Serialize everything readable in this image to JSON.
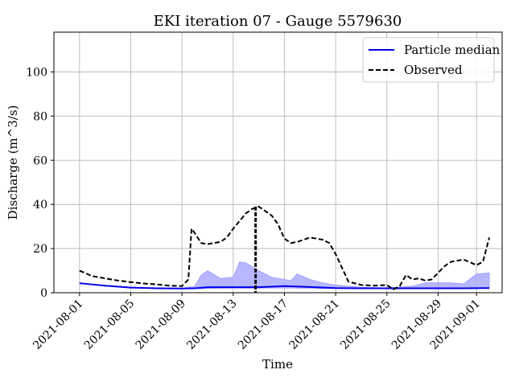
{
  "chart_data": {
    "type": "line",
    "title": "EKI iteration 07 - Gauge 5579630",
    "xlabel": "Time",
    "ylabel": "Discharge (m^3/s)",
    "xlim": [
      "2021-07-30",
      "2021-09-03"
    ],
    "ylim": [
      0,
      118
    ],
    "grid": true,
    "legend_position": "top-right",
    "x_ticks": [
      "2021-08-01",
      "2021-08-05",
      "2021-08-09",
      "2021-08-13",
      "2021-08-17",
      "2021-08-21",
      "2021-08-25",
      "2021-08-29",
      "2021-09-01"
    ],
    "y_ticks": [
      0,
      20,
      40,
      60,
      80,
      100
    ],
    "colors": {
      "median": "#0000ee",
      "band": "#aaaaff",
      "band_edge": "#8888ff",
      "observed": "#000000",
      "grid": "#b0b0b0"
    },
    "series": [
      {
        "name": "Particle median",
        "style": "solid",
        "x": [
          "2021-08-01",
          "2021-08-03",
          "2021-08-05",
          "2021-08-07",
          "2021-08-09",
          "2021-08-10",
          "2021-08-11",
          "2021-08-13",
          "2021-08-14",
          "2021-08-15",
          "2021-08-17",
          "2021-08-19",
          "2021-08-21",
          "2021-08-23",
          "2021-08-25",
          "2021-08-27",
          "2021-08-29",
          "2021-08-31",
          "2021-09-02"
        ],
        "values": [
          4.3,
          3.2,
          2.3,
          2.0,
          1.9,
          2.0,
          2.5,
          2.5,
          2.5,
          2.5,
          3.0,
          2.6,
          2.1,
          2.0,
          2.0,
          2.0,
          2.0,
          2.0,
          2.1
        ]
      },
      {
        "name": "Observed",
        "style": "dashed",
        "x": [
          "2021-08-01",
          "2021-08-02",
          "2021-08-03",
          "2021-08-04",
          "2021-08-05",
          "2021-08-06",
          "2021-08-07",
          "2021-08-08",
          "2021-08-09",
          "2021-08-09 12:00",
          "2021-08-09 18:00",
          "2021-08-10",
          "2021-08-10 12:00",
          "2021-08-11",
          "2021-08-12",
          "2021-08-12 12:00",
          "2021-08-13",
          "2021-08-14",
          "2021-08-14 12:00",
          "2021-08-15",
          "2021-08-16",
          "2021-08-16 12:00",
          "2021-08-17",
          "2021-08-17 12:00",
          "2021-08-18",
          "2021-08-19",
          "2021-08-20",
          "2021-08-20 12:00",
          "2021-08-21",
          "2021-08-22",
          "2021-08-23",
          "2021-08-24",
          "2021-08-25",
          "2021-08-25 12:00",
          "2021-08-26",
          "2021-08-26 12:00",
          "2021-08-27",
          "2021-08-27 12:00",
          "2021-08-28",
          "2021-08-28 12:00",
          "2021-08-29",
          "2021-08-29 12:00",
          "2021-08-30",
          "2021-08-31",
          "2021-09-01",
          "2021-09-01 12:00",
          "2021-09-02"
        ],
        "values": [
          10,
          7.5,
          6.5,
          5.5,
          4.8,
          4.2,
          3.8,
          3.2,
          3.0,
          6,
          29,
          27,
          22.5,
          22,
          23,
          25,
          29,
          36,
          38,
          39,
          35,
          31,
          24.5,
          22.5,
          23,
          25,
          24,
          22.5,
          17.5,
          5,
          3.5,
          3.2,
          3.5,
          1.5,
          3,
          8,
          6,
          6.5,
          5.5,
          6,
          9,
          12,
          14,
          15,
          12.5,
          14,
          25
        ]
      },
      {
        "name": "",
        "style": "band",
        "x": [
          "2021-08-09",
          "2021-08-10",
          "2021-08-10 12:00",
          "2021-08-11",
          "2021-08-12",
          "2021-08-13",
          "2021-08-13 12:00",
          "2021-08-14",
          "2021-08-15",
          "2021-08-16",
          "2021-08-17",
          "2021-08-17 12:00",
          "2021-08-18",
          "2021-08-19",
          "2021-08-20",
          "2021-08-21",
          "2021-08-23",
          "2021-08-25",
          "2021-08-27",
          "2021-08-28",
          "2021-08-30",
          "2021-08-31",
          "2021-09-01",
          "2021-09-02"
        ],
        "low": [
          1.8,
          1.8,
          1.8,
          1.9,
          2.0,
          2.0,
          2.0,
          2.0,
          2.0,
          2.1,
          2.1,
          2.1,
          2.0,
          2.0,
          1.9,
          1.9,
          1.9,
          1.9,
          1.9,
          1.9,
          1.9,
          1.9,
          1.9,
          2.0
        ],
        "high": [
          2.0,
          3.0,
          8.0,
          10.0,
          6.5,
          7.0,
          14.0,
          13.5,
          10.0,
          7.0,
          6.0,
          5.5,
          8.5,
          6.0,
          4.5,
          3.5,
          2.5,
          2.2,
          3.0,
          4.5,
          4.5,
          4.0,
          8.5,
          9.0
        ]
      }
    ]
  }
}
